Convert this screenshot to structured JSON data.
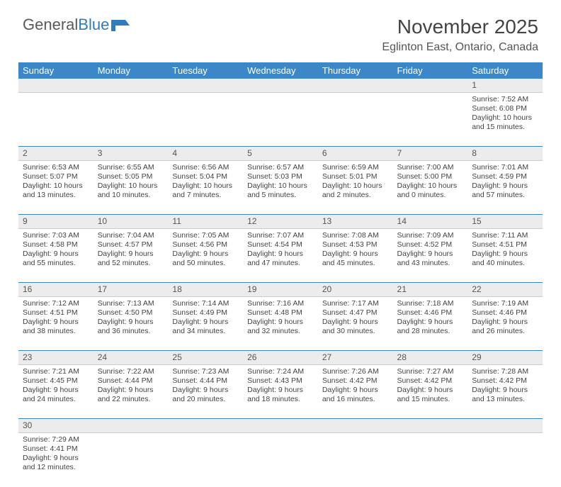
{
  "logo": {
    "text1": "General",
    "text2": "Blue"
  },
  "title": {
    "month": "November 2025",
    "location": "Eglinton East, Ontario, Canada"
  },
  "colors": {
    "header_bg": "#3c87c7",
    "header_fg": "#ffffff",
    "daynum_bg": "#ececec",
    "border": "#3c87c7"
  },
  "weekdays": [
    "Sunday",
    "Monday",
    "Tuesday",
    "Wednesday",
    "Thursday",
    "Friday",
    "Saturday"
  ],
  "weeks": [
    {
      "nums": [
        "",
        "",
        "",
        "",
        "",
        "",
        "1"
      ],
      "cells": [
        null,
        null,
        null,
        null,
        null,
        null,
        {
          "sunrise": "Sunrise: 7:52 AM",
          "sunset": "Sunset: 6:08 PM",
          "daylight1": "Daylight: 10 hours",
          "daylight2": "and 15 minutes."
        }
      ]
    },
    {
      "nums": [
        "2",
        "3",
        "4",
        "5",
        "6",
        "7",
        "8"
      ],
      "cells": [
        {
          "sunrise": "Sunrise: 6:53 AM",
          "sunset": "Sunset: 5:07 PM",
          "daylight1": "Daylight: 10 hours",
          "daylight2": "and 13 minutes."
        },
        {
          "sunrise": "Sunrise: 6:55 AM",
          "sunset": "Sunset: 5:05 PM",
          "daylight1": "Daylight: 10 hours",
          "daylight2": "and 10 minutes."
        },
        {
          "sunrise": "Sunrise: 6:56 AM",
          "sunset": "Sunset: 5:04 PM",
          "daylight1": "Daylight: 10 hours",
          "daylight2": "and 7 minutes."
        },
        {
          "sunrise": "Sunrise: 6:57 AM",
          "sunset": "Sunset: 5:03 PM",
          "daylight1": "Daylight: 10 hours",
          "daylight2": "and 5 minutes."
        },
        {
          "sunrise": "Sunrise: 6:59 AM",
          "sunset": "Sunset: 5:01 PM",
          "daylight1": "Daylight: 10 hours",
          "daylight2": "and 2 minutes."
        },
        {
          "sunrise": "Sunrise: 7:00 AM",
          "sunset": "Sunset: 5:00 PM",
          "daylight1": "Daylight: 10 hours",
          "daylight2": "and 0 minutes."
        },
        {
          "sunrise": "Sunrise: 7:01 AM",
          "sunset": "Sunset: 4:59 PM",
          "daylight1": "Daylight: 9 hours",
          "daylight2": "and 57 minutes."
        }
      ]
    },
    {
      "nums": [
        "9",
        "10",
        "11",
        "12",
        "13",
        "14",
        "15"
      ],
      "cells": [
        {
          "sunrise": "Sunrise: 7:03 AM",
          "sunset": "Sunset: 4:58 PM",
          "daylight1": "Daylight: 9 hours",
          "daylight2": "and 55 minutes."
        },
        {
          "sunrise": "Sunrise: 7:04 AM",
          "sunset": "Sunset: 4:57 PM",
          "daylight1": "Daylight: 9 hours",
          "daylight2": "and 52 minutes."
        },
        {
          "sunrise": "Sunrise: 7:05 AM",
          "sunset": "Sunset: 4:56 PM",
          "daylight1": "Daylight: 9 hours",
          "daylight2": "and 50 minutes."
        },
        {
          "sunrise": "Sunrise: 7:07 AM",
          "sunset": "Sunset: 4:54 PM",
          "daylight1": "Daylight: 9 hours",
          "daylight2": "and 47 minutes."
        },
        {
          "sunrise": "Sunrise: 7:08 AM",
          "sunset": "Sunset: 4:53 PM",
          "daylight1": "Daylight: 9 hours",
          "daylight2": "and 45 minutes."
        },
        {
          "sunrise": "Sunrise: 7:09 AM",
          "sunset": "Sunset: 4:52 PM",
          "daylight1": "Daylight: 9 hours",
          "daylight2": "and 43 minutes."
        },
        {
          "sunrise": "Sunrise: 7:11 AM",
          "sunset": "Sunset: 4:51 PM",
          "daylight1": "Daylight: 9 hours",
          "daylight2": "and 40 minutes."
        }
      ]
    },
    {
      "nums": [
        "16",
        "17",
        "18",
        "19",
        "20",
        "21",
        "22"
      ],
      "cells": [
        {
          "sunrise": "Sunrise: 7:12 AM",
          "sunset": "Sunset: 4:51 PM",
          "daylight1": "Daylight: 9 hours",
          "daylight2": "and 38 minutes."
        },
        {
          "sunrise": "Sunrise: 7:13 AM",
          "sunset": "Sunset: 4:50 PM",
          "daylight1": "Daylight: 9 hours",
          "daylight2": "and 36 minutes."
        },
        {
          "sunrise": "Sunrise: 7:14 AM",
          "sunset": "Sunset: 4:49 PM",
          "daylight1": "Daylight: 9 hours",
          "daylight2": "and 34 minutes."
        },
        {
          "sunrise": "Sunrise: 7:16 AM",
          "sunset": "Sunset: 4:48 PM",
          "daylight1": "Daylight: 9 hours",
          "daylight2": "and 32 minutes."
        },
        {
          "sunrise": "Sunrise: 7:17 AM",
          "sunset": "Sunset: 4:47 PM",
          "daylight1": "Daylight: 9 hours",
          "daylight2": "and 30 minutes."
        },
        {
          "sunrise": "Sunrise: 7:18 AM",
          "sunset": "Sunset: 4:46 PM",
          "daylight1": "Daylight: 9 hours",
          "daylight2": "and 28 minutes."
        },
        {
          "sunrise": "Sunrise: 7:19 AM",
          "sunset": "Sunset: 4:46 PM",
          "daylight1": "Daylight: 9 hours",
          "daylight2": "and 26 minutes."
        }
      ]
    },
    {
      "nums": [
        "23",
        "24",
        "25",
        "26",
        "27",
        "28",
        "29"
      ],
      "cells": [
        {
          "sunrise": "Sunrise: 7:21 AM",
          "sunset": "Sunset: 4:45 PM",
          "daylight1": "Daylight: 9 hours",
          "daylight2": "and 24 minutes."
        },
        {
          "sunrise": "Sunrise: 7:22 AM",
          "sunset": "Sunset: 4:44 PM",
          "daylight1": "Daylight: 9 hours",
          "daylight2": "and 22 minutes."
        },
        {
          "sunrise": "Sunrise: 7:23 AM",
          "sunset": "Sunset: 4:44 PM",
          "daylight1": "Daylight: 9 hours",
          "daylight2": "and 20 minutes."
        },
        {
          "sunrise": "Sunrise: 7:24 AM",
          "sunset": "Sunset: 4:43 PM",
          "daylight1": "Daylight: 9 hours",
          "daylight2": "and 18 minutes."
        },
        {
          "sunrise": "Sunrise: 7:26 AM",
          "sunset": "Sunset: 4:42 PM",
          "daylight1": "Daylight: 9 hours",
          "daylight2": "and 16 minutes."
        },
        {
          "sunrise": "Sunrise: 7:27 AM",
          "sunset": "Sunset: 4:42 PM",
          "daylight1": "Daylight: 9 hours",
          "daylight2": "and 15 minutes."
        },
        {
          "sunrise": "Sunrise: 7:28 AM",
          "sunset": "Sunset: 4:42 PM",
          "daylight1": "Daylight: 9 hours",
          "daylight2": "and 13 minutes."
        }
      ]
    },
    {
      "nums": [
        "30",
        "",
        "",
        "",
        "",
        "",
        ""
      ],
      "cells": [
        {
          "sunrise": "Sunrise: 7:29 AM",
          "sunset": "Sunset: 4:41 PM",
          "daylight1": "Daylight: 9 hours",
          "daylight2": "and 12 minutes."
        },
        null,
        null,
        null,
        null,
        null,
        null
      ]
    }
  ]
}
